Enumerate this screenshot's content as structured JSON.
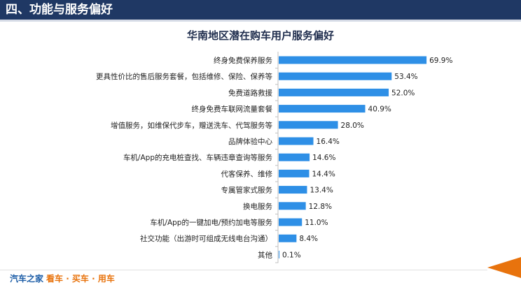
{
  "header": {
    "title": "四、功能与服务偏好"
  },
  "footer": {
    "brand": "汽车之家",
    "slogan": "看车 · 买车 · 用车"
  },
  "colors": {
    "bar": "#2e8fe6",
    "header_bg": "#1f3864",
    "accent": "#e8730d"
  },
  "chart_data": {
    "type": "bar",
    "orientation": "horizontal",
    "title": "华南地区潜在购车用户服务偏好",
    "categories": [
      "终身免费保养服务",
      "更具性价比的售后服务套餐，包括维修、保险、保养等",
      "免费道路救援",
      "终身免费车联网流量套餐",
      "增值服务，如维保代步车，赠送洗车、代驾服务等",
      "品牌体验中心",
      "车机/App的充电桩查找、车辆违章查询等服务",
      "代客保养、维修",
      "专属管家式服务",
      "换电服务",
      "车机/App的一键加电/预约加电等服务",
      "社交功能（出游时可组成无线电台沟通）",
      "其他"
    ],
    "values": [
      69.9,
      53.4,
      52.0,
      40.9,
      28.0,
      16.4,
      14.6,
      14.4,
      13.4,
      12.8,
      11.0,
      8.4,
      0.1
    ],
    "value_labels": [
      "69.9%",
      "53.4%",
      "52.0%",
      "40.9%",
      "28.0%",
      "16.4%",
      "14.6%",
      "14.4%",
      "13.4%",
      "12.8%",
      "11.0%",
      "8.4%",
      "0.1%"
    ],
    "xlim": [
      0,
      100
    ],
    "grid": false
  }
}
